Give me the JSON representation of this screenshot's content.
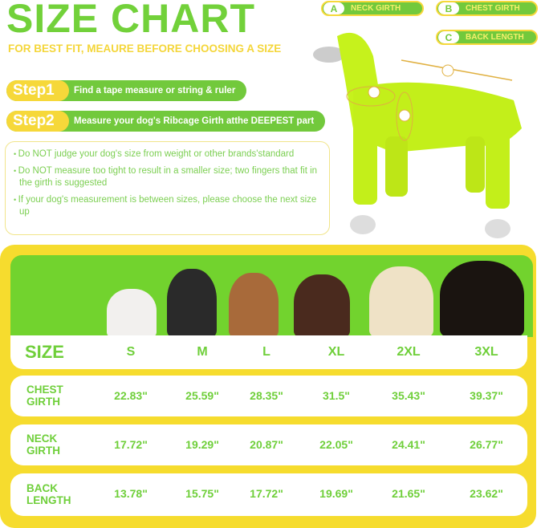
{
  "title": "SIZE CHART",
  "subtitle": "FOR BEST FIT, MEAURE BEFORE CHOOSING A SIZE",
  "steps": [
    {
      "tag": "Step1",
      "text": "Find a tape measure or string & ruler"
    },
    {
      "tag": "Step2",
      "text": "Measure your dog's Ribcage Girth atthe DEEPEST part"
    }
  ],
  "notes": [
    "Do NOT judge your dog's size from weight or other brands'standard",
    "Do NOT measure too tight to result in a smaller size; two fingers that fit in the girth is suggested",
    "If your dog's measurement is between sizes,  please choose the next size up"
  ],
  "legend": [
    {
      "letter": "A",
      "label": "NECK GIRTH"
    },
    {
      "letter": "B",
      "label": "CHEST GIRTH"
    },
    {
      "letter": "C",
      "label": "BACK LENGTH"
    }
  ],
  "colors": {
    "green": "#72d13a",
    "yellow": "#f6dc2e",
    "raincoat": "#c6f21c"
  },
  "table": {
    "size_label": "SIZE",
    "sizes": [
      "S",
      "M",
      "L",
      "XL",
      "2XL",
      "3XL"
    ],
    "rows": [
      {
        "label": "CHEST GIRTH",
        "values": [
          "22.83\"",
          "25.59\"",
          "28.35\"",
          "31.5\"",
          "35.43\"",
          "39.37\""
        ]
      },
      {
        "label": "NECK GIRTH",
        "values": [
          "17.72\"",
          "19.29\"",
          "20.87\"",
          "22.05\"",
          "24.41\"",
          "26.77\""
        ]
      },
      {
        "label": "BACK LENGTH",
        "values": [
          "13.78\"",
          "15.75\"",
          "17.72\"",
          "19.69\"",
          "21.65\"",
          "23.62\""
        ]
      }
    ]
  }
}
